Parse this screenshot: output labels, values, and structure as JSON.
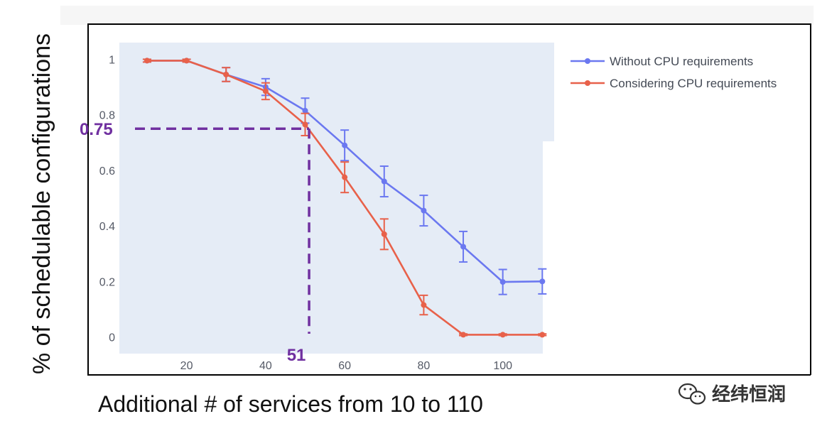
{
  "chart_data": {
    "type": "line",
    "title": "",
    "xlabel": "Additional # of services from 10 to 110",
    "ylabel": "% of schedulable configurations",
    "xlim": [
      3,
      113
    ],
    "ylim": [
      -0.06,
      1.06
    ],
    "x_ticks": [
      20,
      40,
      60,
      80,
      100
    ],
    "x_tick_labels": [
      "20",
      "40",
      "60",
      "80",
      "100"
    ],
    "y_ticks": [
      0,
      0.2,
      0.4,
      0.6,
      0.8,
      1
    ],
    "y_tick_labels": [
      "0",
      "0.2",
      "0.4",
      "0.6",
      "0.8",
      "1"
    ],
    "grid": false,
    "legend_position": "top-right",
    "x": [
      10,
      20,
      30,
      40,
      50,
      60,
      70,
      80,
      90,
      100,
      110
    ],
    "series": [
      {
        "name": "Without CPU requirements",
        "color": "#6b78f0",
        "values": [
          0.995,
          0.995,
          0.945,
          0.9,
          0.815,
          0.69,
          0.56,
          0.455,
          0.325,
          0.198,
          0.2
        ],
        "error": [
          0.005,
          0.005,
          0.025,
          0.03,
          0.045,
          0.055,
          0.055,
          0.055,
          0.055,
          0.045,
          0.045
        ]
      },
      {
        "name": "Considering CPU requirements",
        "color": "#e8614a",
        "values": [
          0.995,
          0.995,
          0.945,
          0.885,
          0.765,
          0.575,
          0.37,
          0.115,
          0.008,
          0.008,
          0.008
        ],
        "error": [
          0.005,
          0.005,
          0.025,
          0.03,
          0.04,
          0.055,
          0.055,
          0.035,
          0.003,
          0.003,
          0.003
        ]
      }
    ],
    "annotations": [
      {
        "label": "0.75",
        "x": 51,
        "y": 0.75,
        "color": "#7030a0"
      },
      {
        "label": "51",
        "x": 51,
        "y": 0,
        "color": "#7030a0"
      }
    ]
  },
  "watermark": {
    "text": "经纬恒润",
    "icon": "wechat-icon"
  }
}
